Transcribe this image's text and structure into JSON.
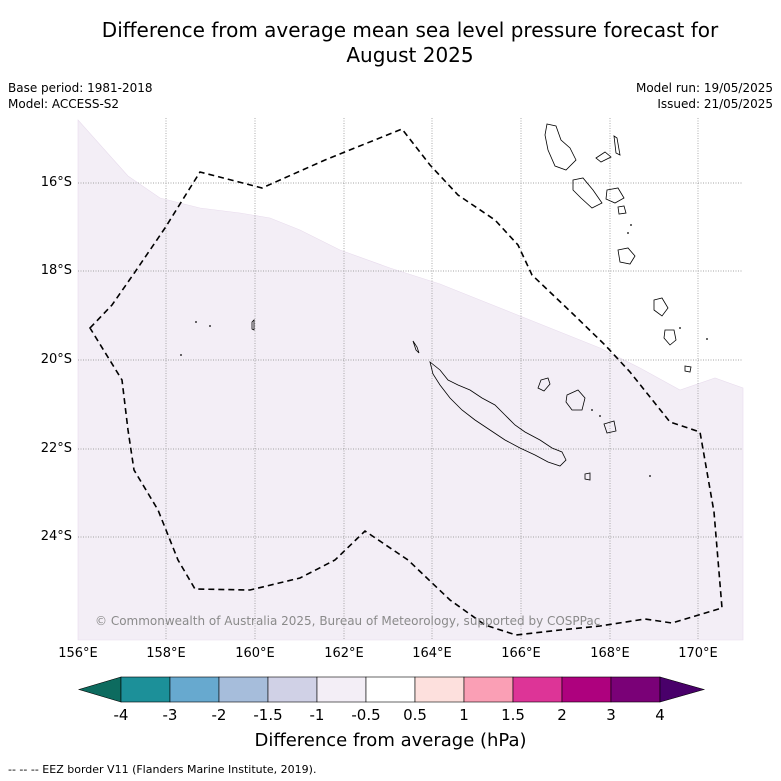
{
  "title_line1": "Difference from average mean sea level pressure forecast for",
  "title_line2": "August 2025",
  "base_period": "Base period: 1981-2018",
  "model": "Model: ACCESS-S2",
  "model_run": "Model run: 19/05/2025",
  "issued": "Issued: 21/05/2025",
  "copyright": "© Commonwealth of Australia 2025, Bureau of Meteorology, supported by COSPPac",
  "lat_labels": [
    "16°S",
    "18°S",
    "20°S",
    "22°S",
    "24°S"
  ],
  "lon_labels": [
    "156°E",
    "158°E",
    "160°E",
    "162°E",
    "164°E",
    "166°E",
    "168°E",
    "170°E"
  ],
  "colorbar": {
    "title": "Difference from average (hPa)",
    "ticks": [
      "-4",
      "-3",
      "-2",
      "-1.5",
      "-1",
      "-0.5",
      "0.5",
      "1",
      "1.5",
      "2",
      "3",
      "4"
    ],
    "colors": [
      "#0d6b5f",
      "#1c9099",
      "#67a9cf",
      "#a6bddb",
      "#d0d1e6",
      "#f3eef6",
      "#ffffff",
      "#fde0dd",
      "#fa9fb5",
      "#dd3497",
      "#ae017e",
      "#7a0177",
      "#49006a"
    ]
  },
  "footnote": "--  --  -- EEZ border V11 (Flanders Marine Institute, 2019)."
}
